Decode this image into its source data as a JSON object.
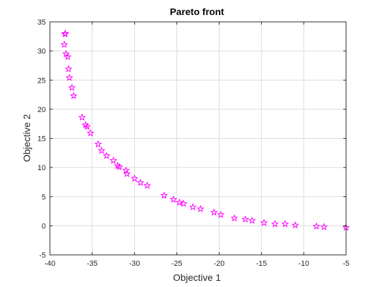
{
  "chart_data": {
    "type": "scatter",
    "title": "Pareto front",
    "xlabel": "Objective 1",
    "ylabel": "Objective 2",
    "xlim": [
      -40,
      -5
    ],
    "ylim": [
      -5,
      35
    ],
    "xticks": [
      -40,
      -35,
      -30,
      -25,
      -20,
      -15,
      -10,
      -5
    ],
    "yticks": [
      -5,
      0,
      5,
      10,
      15,
      20,
      25,
      30,
      35
    ],
    "xtick_labels": [
      "-40",
      "-35",
      "-30",
      "-25",
      "-20",
      "-15",
      "-10",
      "-5"
    ],
    "ytick_labels": [
      "-5",
      "0",
      "5",
      "10",
      "15",
      "20",
      "25",
      "30",
      "35"
    ],
    "grid": true,
    "marker": "star",
    "marker_color": "#ff00ff",
    "points": [
      [
        -38.2,
        33.0
      ],
      [
        -38.2,
        32.9
      ],
      [
        -38.3,
        31.1
      ],
      [
        -38.1,
        29.5
      ],
      [
        -37.9,
        29.0
      ],
      [
        -37.8,
        26.9
      ],
      [
        -37.7,
        25.4
      ],
      [
        -37.4,
        23.7
      ],
      [
        -37.2,
        22.3
      ],
      [
        -36.2,
        18.6
      ],
      [
        -35.8,
        17.3
      ],
      [
        -35.6,
        17.0
      ],
      [
        -35.2,
        15.9
      ],
      [
        -34.3,
        14.0
      ],
      [
        -33.9,
        12.9
      ],
      [
        -33.3,
        12.0
      ],
      [
        -32.5,
        11.2
      ],
      [
        -32.0,
        10.3
      ],
      [
        -31.8,
        10.1
      ],
      [
        -31.0,
        9.5
      ],
      [
        -30.9,
        8.9
      ],
      [
        -30.0,
        8.1
      ],
      [
        -29.3,
        7.4
      ],
      [
        -28.5,
        6.9
      ],
      [
        -26.5,
        5.2
      ],
      [
        -25.4,
        4.5
      ],
      [
        -24.7,
        4.0
      ],
      [
        -24.2,
        3.8
      ],
      [
        -23.1,
        3.2
      ],
      [
        -22.2,
        2.9
      ],
      [
        -20.6,
        2.3
      ],
      [
        -19.8,
        1.9
      ],
      [
        -18.2,
        1.3
      ],
      [
        -16.9,
        1.1
      ],
      [
        -16.1,
        0.9
      ],
      [
        -14.7,
        0.5
      ],
      [
        -13.4,
        0.3
      ],
      [
        -12.2,
        0.3
      ],
      [
        -11.0,
        0.1
      ],
      [
        -8.5,
        -0.1
      ],
      [
        -7.6,
        -0.2
      ],
      [
        -5.0,
        -0.3
      ]
    ]
  }
}
